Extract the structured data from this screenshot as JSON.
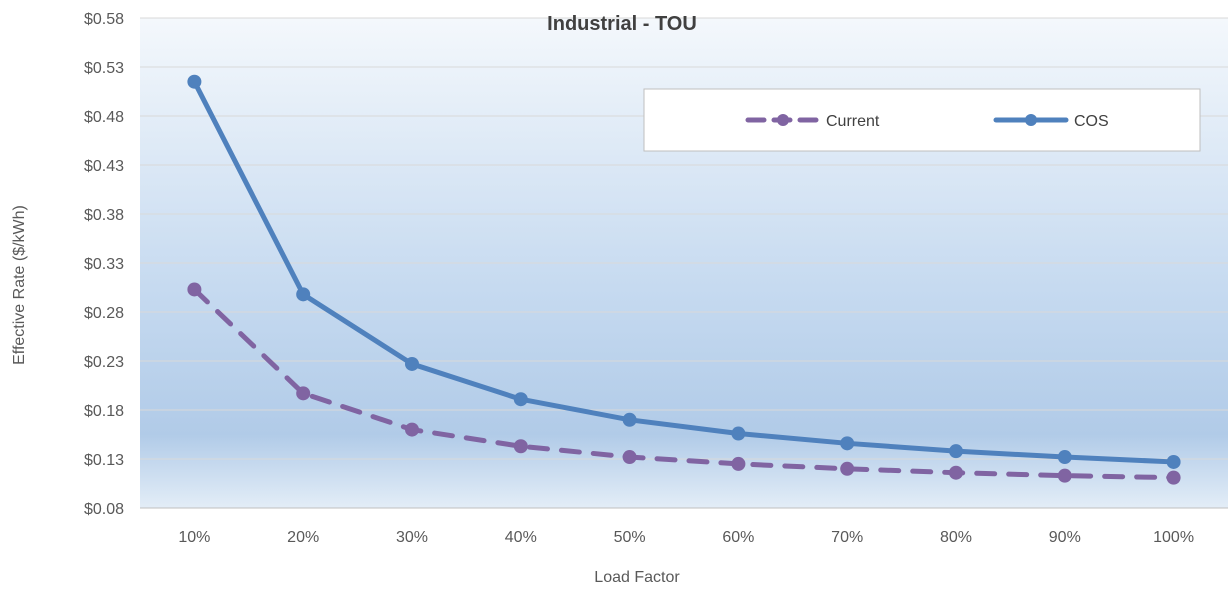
{
  "chart_data": {
    "type": "line",
    "title": "Industrial - TOU",
    "xlabel": "Load Factor",
    "ylabel": "Effective Rate ($/kWh)",
    "categories": [
      "10%",
      "20%",
      "30%",
      "40%",
      "50%",
      "60%",
      "70%",
      "80%",
      "90%",
      "100%"
    ],
    "y_ticks": [
      "$0.08",
      "$0.13",
      "$0.18",
      "$0.23",
      "$0.28",
      "$0.33",
      "$0.38",
      "$0.43",
      "$0.48",
      "$0.53",
      "$0.58"
    ],
    "ylim": [
      0.08,
      0.58
    ],
    "grid": true,
    "legend_position": "top-right",
    "series": [
      {
        "name": "Current",
        "style": "dashed",
        "color": "#8064A2",
        "values": [
          0.303,
          0.197,
          0.16,
          0.143,
          0.132,
          0.125,
          0.12,
          0.116,
          0.113,
          0.111
        ]
      },
      {
        "name": "COS",
        "style": "solid",
        "color": "#4F81BD",
        "values": [
          0.515,
          0.298,
          0.227,
          0.191,
          0.17,
          0.156,
          0.146,
          0.138,
          0.132,
          0.127
        ]
      }
    ]
  }
}
